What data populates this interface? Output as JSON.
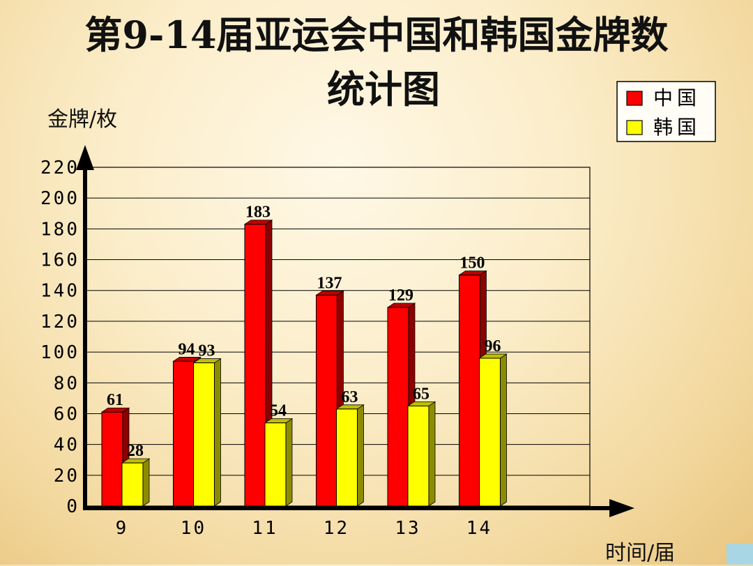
{
  "chart_data": {
    "type": "bar",
    "title_line1": "第9-14届亚运会中国和韩国金牌数",
    "title_line2": "统计图",
    "ylabel": "金牌/枚",
    "xlabel": "时间/届",
    "categories": [
      "9",
      "10",
      "11",
      "12",
      "13",
      "14"
    ],
    "ylim": [
      0,
      220
    ],
    "yticks": [
      "0",
      "20",
      "40",
      "60",
      "80",
      "100",
      "120",
      "140",
      "160",
      "180",
      "200",
      "220"
    ],
    "grid": true,
    "legend_position": "top-right",
    "series": [
      {
        "name": "中国",
        "color": "#ff0000",
        "values": [
          61,
          94,
          183,
          137,
          129,
          150
        ]
      },
      {
        "name": "韩国",
        "color": "#ffff00",
        "values": [
          28,
          93,
          54,
          63,
          65,
          96
        ]
      }
    ]
  }
}
